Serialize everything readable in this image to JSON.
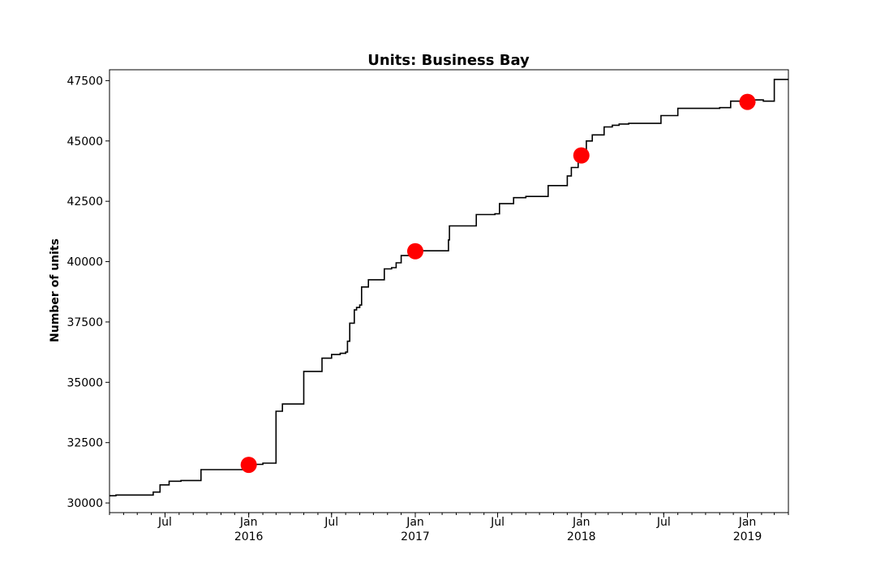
{
  "chart_data": {
    "type": "line",
    "title": "Units: Business Bay",
    "xlabel": "",
    "ylabel": "Number of units",
    "xlim": [
      "2015-03-01",
      "2019-04-01"
    ],
    "ylim": [
      29600,
      47950
    ],
    "y_ticks": [
      30000,
      32500,
      35000,
      37500,
      40000,
      42500,
      45000,
      47500
    ],
    "x_ticks": [
      {
        "date": "2015-07-01",
        "label": "Jul",
        "sublabel": ""
      },
      {
        "date": "2016-01-01",
        "label": "Jan",
        "sublabel": "2016"
      },
      {
        "date": "2016-07-01",
        "label": "Jul",
        "sublabel": ""
      },
      {
        "date": "2017-01-01",
        "label": "Jan",
        "sublabel": "2017"
      },
      {
        "date": "2017-07-01",
        "label": "Jul",
        "sublabel": ""
      },
      {
        "date": "2018-01-01",
        "label": "Jan",
        "sublabel": "2018"
      },
      {
        "date": "2018-07-01",
        "label": "Jul",
        "sublabel": ""
      },
      {
        "date": "2019-01-01",
        "label": "Jan",
        "sublabel": "2019"
      }
    ],
    "grid": false,
    "series": [
      {
        "style": "step",
        "color": "#000000",
        "points": [
          [
            "2015-03-01",
            30300
          ],
          [
            "2015-03-15",
            30330
          ],
          [
            "2015-06-05",
            30450
          ],
          [
            "2015-06-20",
            30750
          ],
          [
            "2015-07-10",
            30900
          ],
          [
            "2015-08-05",
            30930
          ],
          [
            "2015-09-18",
            31380
          ],
          [
            "2015-12-20",
            31400
          ],
          [
            "2016-01-01",
            31600
          ],
          [
            "2016-02-01",
            31650
          ],
          [
            "2016-03-01",
            33800
          ],
          [
            "2016-03-15",
            34100
          ],
          [
            "2016-05-01",
            35450
          ],
          [
            "2016-06-10",
            36000
          ],
          [
            "2016-07-01",
            36150
          ],
          [
            "2016-07-20",
            36200
          ],
          [
            "2016-08-01",
            36250
          ],
          [
            "2016-08-05",
            36700
          ],
          [
            "2016-08-10",
            37450
          ],
          [
            "2016-08-20",
            38000
          ],
          [
            "2016-08-25",
            38100
          ],
          [
            "2016-09-01",
            38200
          ],
          [
            "2016-09-05",
            38950
          ],
          [
            "2016-09-20",
            39250
          ],
          [
            "2016-10-25",
            39700
          ],
          [
            "2016-11-10",
            39750
          ],
          [
            "2016-11-20",
            39950
          ],
          [
            "2016-12-01",
            40250
          ],
          [
            "2016-12-20",
            40400
          ],
          [
            "2017-01-01",
            40430
          ],
          [
            "2017-01-15",
            40450
          ],
          [
            "2017-03-15",
            40900
          ],
          [
            "2017-03-17",
            41480
          ],
          [
            "2017-05-15",
            41950
          ],
          [
            "2017-06-25",
            41980
          ],
          [
            "2017-07-05",
            42400
          ],
          [
            "2017-08-05",
            42650
          ],
          [
            "2017-09-01",
            42700
          ],
          [
            "2017-10-20",
            43150
          ],
          [
            "2017-12-01",
            43550
          ],
          [
            "2017-12-10",
            43900
          ],
          [
            "2017-12-25",
            44300
          ],
          [
            "2018-01-12",
            45000
          ],
          [
            "2018-01-25",
            45250
          ],
          [
            "2018-02-20",
            45580
          ],
          [
            "2018-03-10",
            45650
          ],
          [
            "2018-03-25",
            45700
          ],
          [
            "2018-04-15",
            45730
          ],
          [
            "2018-06-25",
            46050
          ],
          [
            "2018-08-01",
            46350
          ],
          [
            "2018-11-01",
            46380
          ],
          [
            "2018-11-25",
            46650
          ],
          [
            "2018-12-25",
            46700
          ],
          [
            "2019-02-05",
            46650
          ],
          [
            "2019-03-01",
            47550
          ],
          [
            "2019-04-01",
            47550
          ]
        ]
      }
    ],
    "markers": [
      {
        "date": "2016-01-01",
        "value": 31580,
        "color": "#ff0000"
      },
      {
        "date": "2017-01-01",
        "value": 40430,
        "color": "#ff0000"
      },
      {
        "date": "2018-01-01",
        "value": 44400,
        "color": "#ff0000"
      },
      {
        "date": "2019-01-01",
        "value": 46620,
        "color": "#ff0000"
      }
    ]
  }
}
